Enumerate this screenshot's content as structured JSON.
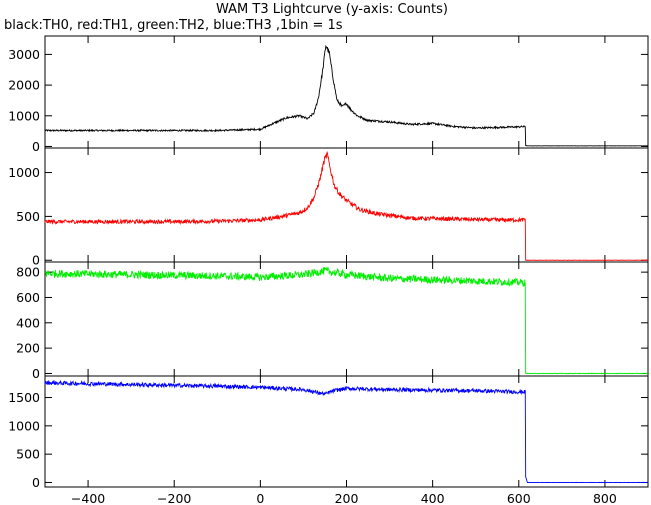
{
  "title": "WAM T3 Lightcurve (y-axis: Counts)",
  "subtitle": "black:TH0, red:TH1, green:TH2, blue:TH3 ,1bin = 1s",
  "chart_data": {
    "type": "line",
    "xlim": [
      -500,
      900
    ],
    "x_ticks": [
      -400,
      -200,
      0,
      200,
      400,
      600,
      800
    ],
    "x_tick_labels": [
      "−400",
      "−200",
      "0",
      "200",
      "400",
      "600",
      "800"
    ],
    "grid": false,
    "legend": "none",
    "panels": [
      {
        "name": "TH0",
        "color": "#000000",
        "ylim": [
          -50,
          3600
        ],
        "y_ticks": [
          0,
          1000,
          2000,
          3000
        ],
        "y_tick_labels": [
          "0",
          "1000",
          "2000",
          "3000"
        ],
        "noise": 25,
        "x": [
          -500,
          -100,
          0,
          30,
          60,
          90,
          110,
          125,
          135,
          145,
          152,
          160,
          168,
          178,
          190,
          200,
          210,
          225,
          250,
          300,
          350,
          400,
          450,
          500,
          550,
          600,
          615,
          616,
          620,
          900
        ],
        "y": [
          520,
          520,
          560,
          750,
          930,
          1000,
          900,
          1100,
          1600,
          2500,
          3300,
          3050,
          2300,
          1500,
          1300,
          1400,
          1200,
          1000,
          850,
          800,
          720,
          750,
          650,
          600,
          620,
          640,
          650,
          30,
          20,
          20
        ]
      },
      {
        "name": "TH1",
        "color": "#ff0000",
        "ylim": [
          -20,
          1280
        ],
        "y_ticks": [
          0,
          500,
          1000
        ],
        "y_tick_labels": [
          "0",
          "500",
          "1000"
        ],
        "noise": 22,
        "x": [
          -500,
          -200,
          -100,
          0,
          50,
          90,
          110,
          125,
          138,
          148,
          155,
          162,
          172,
          185,
          200,
          230,
          270,
          350,
          450,
          550,
          600,
          615,
          616,
          620,
          900
        ],
        "y": [
          440,
          440,
          445,
          460,
          500,
          540,
          600,
          720,
          920,
          1130,
          1210,
          1050,
          850,
          750,
          680,
          580,
          530,
          480,
          470,
          460,
          460,
          460,
          0,
          0,
          0
        ]
      },
      {
        "name": "TH2",
        "color": "#00ee00",
        "ylim": [
          -20,
          880
        ],
        "y_ticks": [
          0,
          200,
          400,
          600,
          800
        ],
        "y_tick_labels": [
          "0",
          "200",
          "400",
          "600",
          "800"
        ],
        "noise": 30,
        "x": [
          -500,
          -300,
          -100,
          0,
          100,
          150,
          200,
          300,
          400,
          500,
          600,
          615,
          616,
          620,
          900
        ],
        "y": [
          790,
          780,
          770,
          760,
          780,
          810,
          780,
          750,
          740,
          730,
          720,
          715,
          0,
          0,
          0
        ]
      },
      {
        "name": "TH3",
        "color": "#0000ff",
        "ylim": [
          -80,
          1880
        ],
        "y_ticks": [
          0,
          500,
          1000,
          1500
        ],
        "y_tick_labels": [
          "0",
          "500",
          "1000",
          "1500"
        ],
        "noise": 35,
        "x": [
          -500,
          -300,
          -100,
          0,
          100,
          150,
          170,
          200,
          300,
          400,
          500,
          600,
          615,
          616,
          620,
          900
        ],
        "y": [
          1760,
          1730,
          1700,
          1680,
          1640,
          1560,
          1620,
          1660,
          1640,
          1630,
          1620,
          1600,
          1600,
          100,
          0,
          0
        ]
      }
    ]
  }
}
